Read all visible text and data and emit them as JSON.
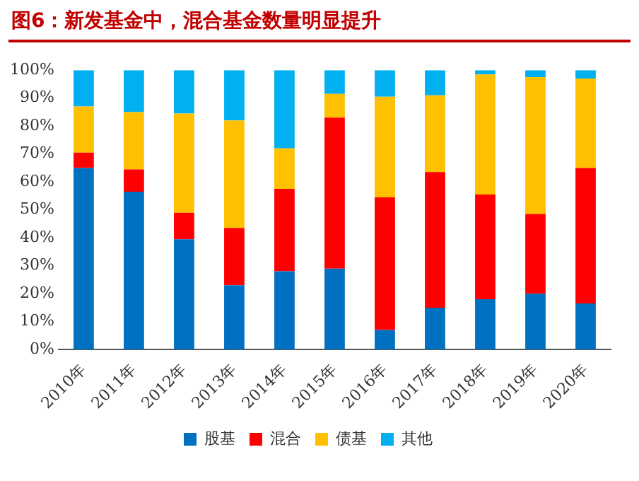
{
  "chart_data": {
    "type": "bar",
    "title": "图6：新发基金中，混合基金数量明显提升",
    "stacked": true,
    "categories": [
      "2010年",
      "2011年",
      "2012年",
      "2013年",
      "2014年",
      "2015年",
      "2016年",
      "2017年",
      "2018年",
      "2019年",
      "2020年"
    ],
    "series": [
      {
        "name": "股基",
        "color": "#0070c0",
        "values": [
          65,
          56.5,
          39.5,
          23,
          28,
          29,
          7,
          15,
          18,
          20,
          16.5
        ]
      },
      {
        "name": "混合",
        "color": "#ff0000",
        "values": [
          5.5,
          8,
          9.5,
          20.5,
          29.5,
          54,
          47.5,
          48.5,
          37.5,
          28.5,
          48.5
        ]
      },
      {
        "name": "债基",
        "color": "#ffc000",
        "values": [
          16.5,
          20.5,
          35.5,
          38.5,
          14.5,
          8.5,
          36,
          27.5,
          43,
          49,
          32
        ]
      },
      {
        "name": "其他",
        "color": "#00b0f0",
        "values": [
          13,
          15,
          15.5,
          18,
          28,
          8.5,
          9.5,
          9,
          1.5,
          2.5,
          3
        ]
      }
    ],
    "ylim": [
      0,
      100
    ],
    "yticks": [
      {
        "value": 0,
        "label": "0%"
      },
      {
        "value": 10,
        "label": "10%"
      },
      {
        "value": 20,
        "label": "20%"
      },
      {
        "value": 30,
        "label": "30%"
      },
      {
        "value": 40,
        "label": "40%"
      },
      {
        "value": 50,
        "label": "50%"
      },
      {
        "value": 60,
        "label": "60%"
      },
      {
        "value": 70,
        "label": "70%"
      },
      {
        "value": 80,
        "label": "80%"
      },
      {
        "value": 90,
        "label": "90%"
      },
      {
        "value": 100,
        "label": "100%"
      }
    ],
    "grid": false,
    "legend": "bottom"
  }
}
